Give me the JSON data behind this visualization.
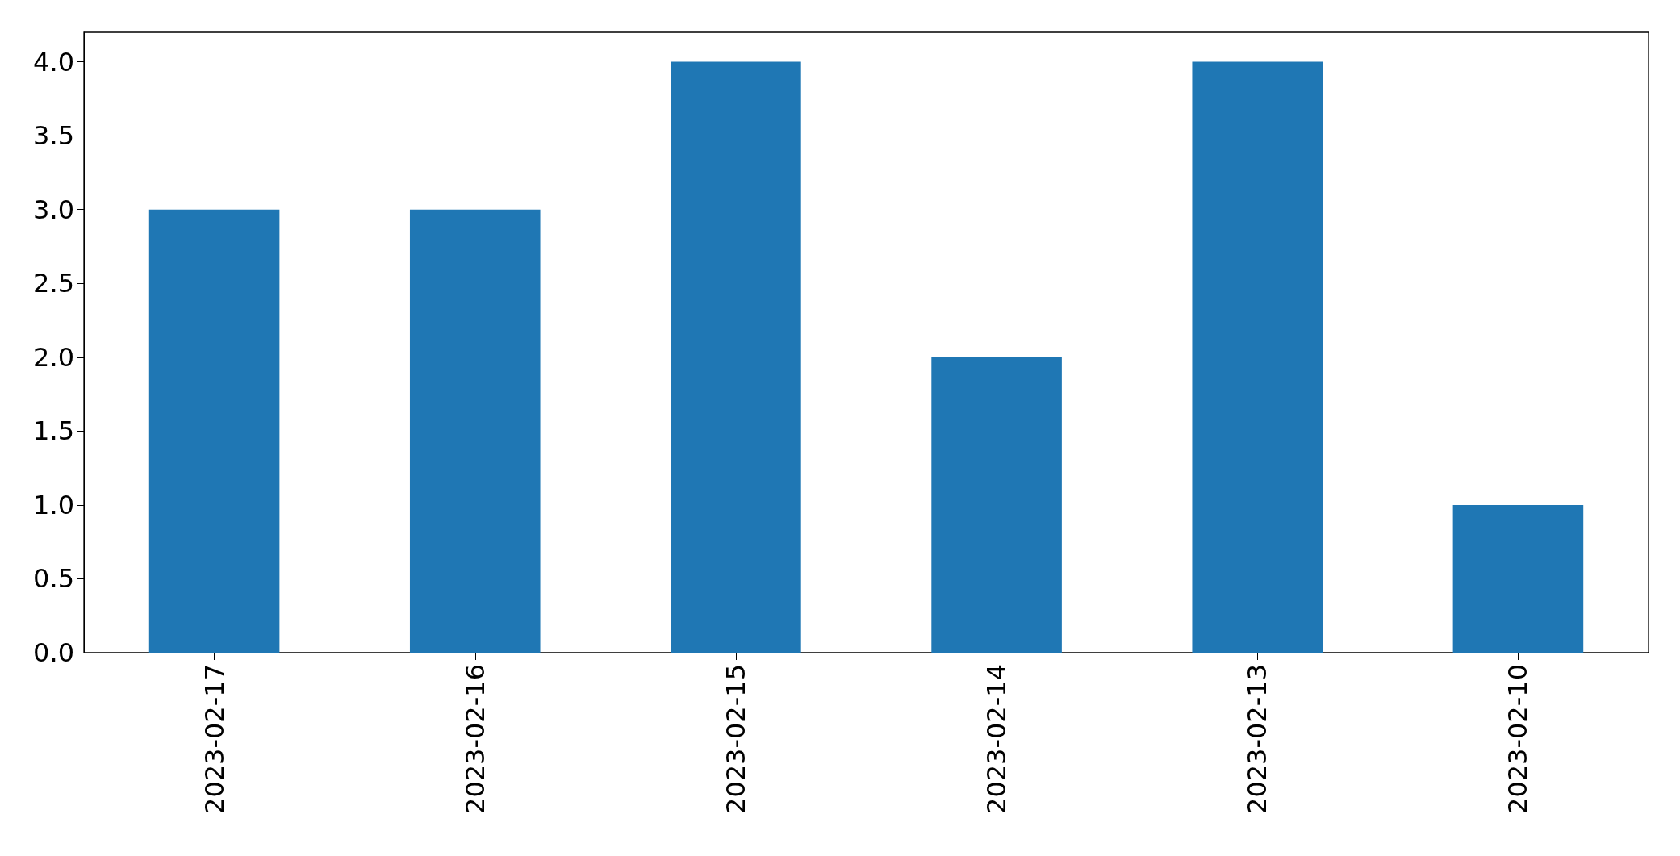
{
  "chart_data": {
    "type": "bar",
    "categories": [
      "2023-02-17",
      "2023-02-16",
      "2023-02-15",
      "2023-02-14",
      "2023-02-13",
      "2023-02-10"
    ],
    "values": [
      3,
      3,
      4,
      2,
      4,
      1
    ],
    "color": "#1f77b4",
    "ylim": [
      0,
      4.2
    ],
    "yticks": [
      {
        "value": 0,
        "label": "0.0"
      },
      {
        "value": 0.5,
        "label": "0.5"
      },
      {
        "value": 1,
        "label": "1.0"
      },
      {
        "value": 1.5,
        "label": "1.5"
      },
      {
        "value": 2,
        "label": "2.0"
      },
      {
        "value": 2.5,
        "label": "2.5"
      },
      {
        "value": 3,
        "label": "3.0"
      },
      {
        "value": 3.5,
        "label": "3.5"
      },
      {
        "value": 4,
        "label": "4.0"
      }
    ],
    "grid": false
  }
}
